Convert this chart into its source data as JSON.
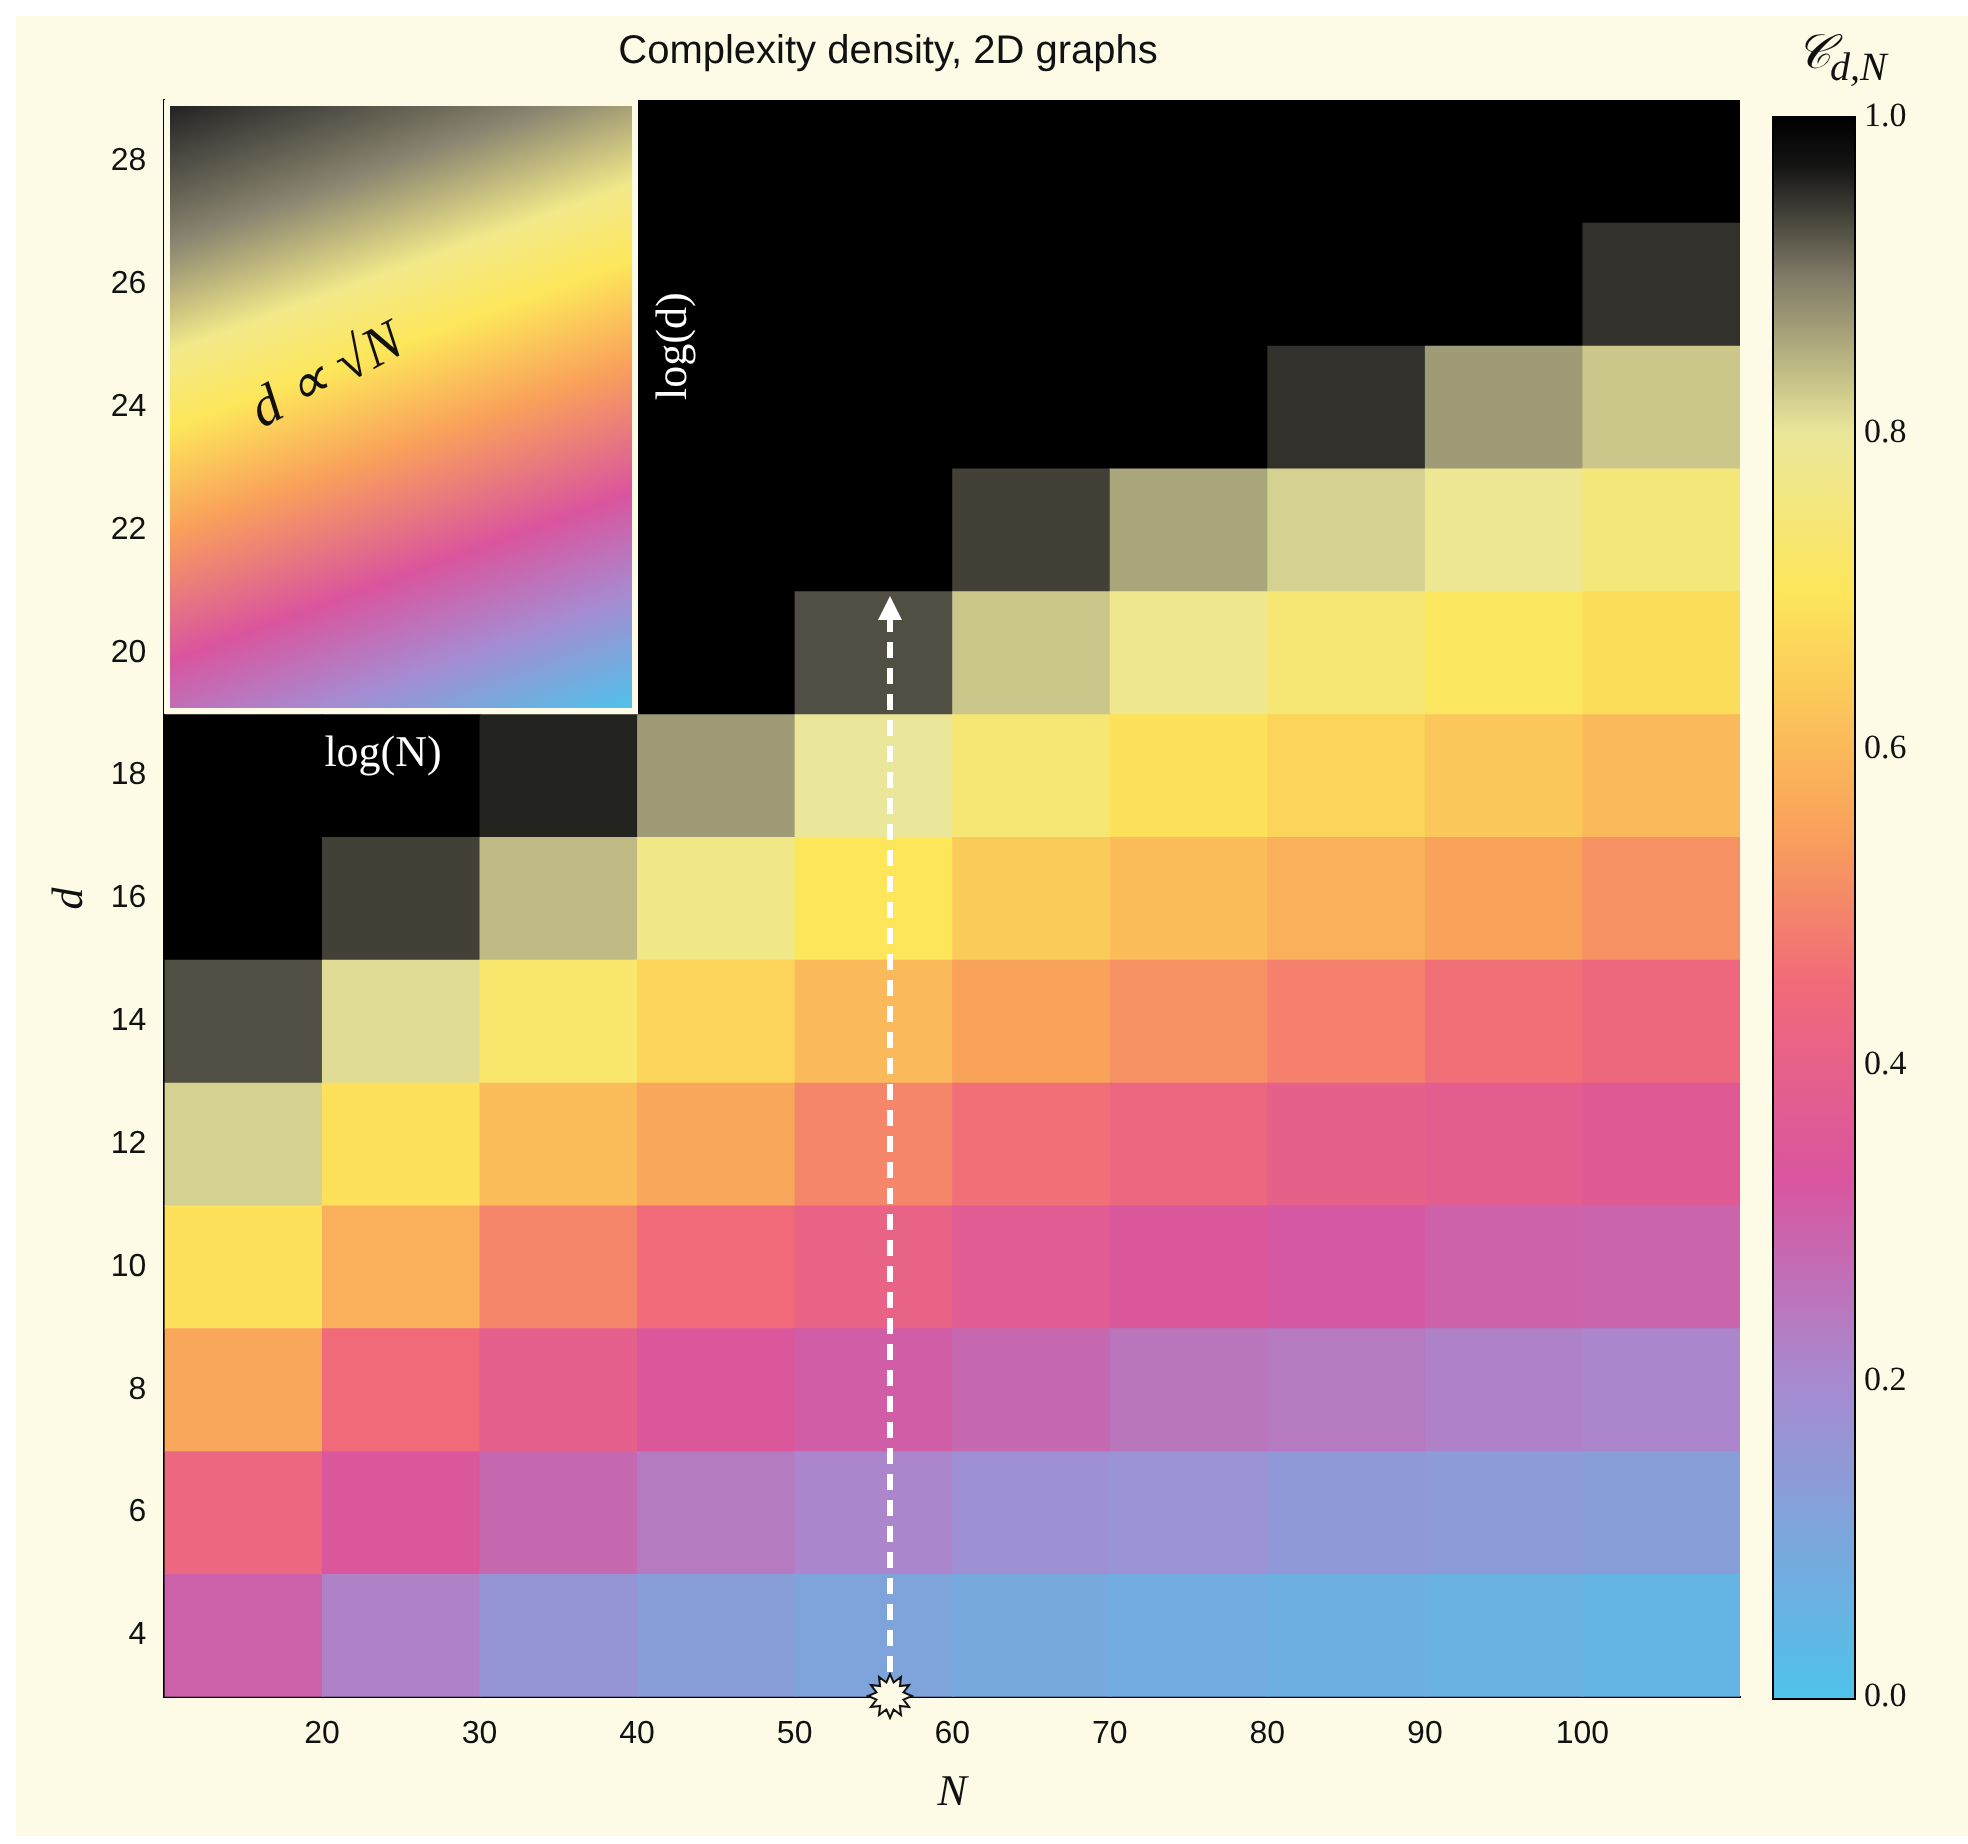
{
  "chart_data": {
    "type": "heatmap",
    "title": "Complexity density, 2D graphs",
    "xlabel": "N",
    "ylabel": "d",
    "clabel": "𝒞$_{d,N}$",
    "x": [
      15,
      25,
      35,
      45,
      55,
      65,
      75,
      85,
      95,
      105
    ],
    "y_categories": [
      "28",
      "26",
      "24",
      "22",
      "20",
      "18",
      "16",
      "14",
      "12",
      "10",
      "8",
      "6",
      "4"
    ],
    "cells": [
      [
        null,
        null,
        null,
        1,
        1,
        1,
        1,
        1,
        1,
        1
      ],
      [
        null,
        null,
        null,
        1,
        1,
        1,
        1,
        1,
        1,
        0.95
      ],
      [
        null,
        null,
        null,
        1,
        1,
        1,
        1,
        0.95,
        0.87,
        0.83
      ],
      [
        null,
        null,
        null,
        1,
        1,
        0.94,
        0.86,
        0.82,
        0.79,
        0.75
      ],
      [
        null,
        null,
        null,
        1,
        0.93,
        0.83,
        0.78,
        0.74,
        0.71,
        0.68
      ],
      [
        1,
        1,
        0.96,
        0.87,
        0.8,
        0.74,
        0.69,
        0.66,
        0.63,
        0.6
      ],
      [
        1,
        0.94,
        0.84,
        0.77,
        0.7,
        0.64,
        0.61,
        0.58,
        0.55,
        0.52
      ],
      [
        0.93,
        0.81,
        0.73,
        0.66,
        0.6,
        0.55,
        0.52,
        0.49,
        0.46,
        0.44
      ],
      [
        0.82,
        0.69,
        0.61,
        0.56,
        0.5,
        0.46,
        0.43,
        0.4,
        0.38,
        0.36
      ],
      [
        0.69,
        0.58,
        0.5,
        0.45,
        0.41,
        0.37,
        0.34,
        0.32,
        0.3,
        0.29
      ],
      [
        0.56,
        0.45,
        0.39,
        0.34,
        0.31,
        0.28,
        0.25,
        0.24,
        0.22,
        0.21
      ],
      [
        0.43,
        0.34,
        0.28,
        0.24,
        0.21,
        0.18,
        0.17,
        0.15,
        0.14,
        0.13
      ],
      [
        0.3,
        0.22,
        0.16,
        0.13,
        0.11,
        0.09,
        0.08,
        0.07,
        0.06,
        0.05
      ]
    ],
    "xlim": [
      10,
      110
    ],
    "xticks": [
      20,
      30,
      40,
      50,
      60,
      70,
      80,
      90,
      100
    ],
    "clim": [
      0,
      1
    ],
    "cticks": [
      {
        "value": 0,
        "label": "0.0"
      },
      {
        "value": 0.2,
        "label": "0.2"
      },
      {
        "value": 0.4,
        "label": "0.4"
      },
      {
        "value": 0.6,
        "label": "0.6"
      },
      {
        "value": 0.8,
        "label": "0.8"
      },
      {
        "value": 1,
        "label": "1.0"
      }
    ],
    "annotations": [
      "d ∝ √N",
      "log(d)",
      "log(N)"
    ]
  }
}
